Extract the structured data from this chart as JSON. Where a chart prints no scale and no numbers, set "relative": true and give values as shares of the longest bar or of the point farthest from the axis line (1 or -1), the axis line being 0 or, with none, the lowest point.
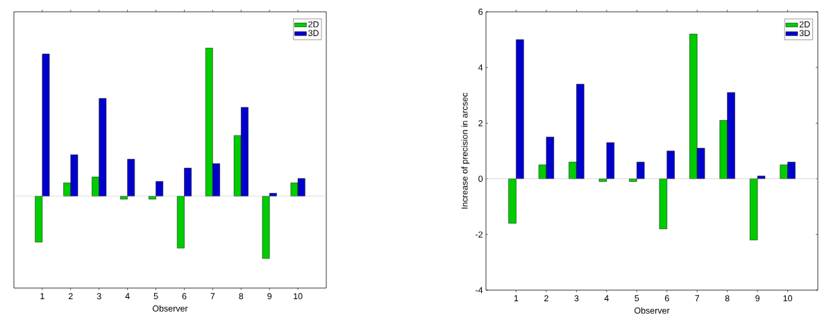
{
  "chart_data": [
    {
      "type": "bar",
      "xlabel": "Observer",
      "categories": [
        "1",
        "2",
        "3",
        "4",
        "5",
        "6",
        "7",
        "8",
        "9",
        "10"
      ],
      "relative": true,
      "legend": "top right",
      "series": [
        {
          "name": "2D",
          "color": "#00cc00",
          "values": [
            -0.31,
            0.09,
            0.13,
            -0.02,
            -0.02,
            -0.35,
            1,
            0.41,
            -0.42,
            0.09
          ]
        },
        {
          "name": "3D",
          "color": "#0000cc",
          "values": [
            0.96,
            0.28,
            0.66,
            0.25,
            0.1,
            0.19,
            0.22,
            0.6,
            0.02,
            0.12
          ]
        }
      ]
    },
    {
      "type": "bar",
      "xlabel": "Observer",
      "ylabel": "Increase of precision in arcsec",
      "categories": [
        "1",
        "2",
        "3",
        "4",
        "5",
        "6",
        "7",
        "8",
        "9",
        "10"
      ],
      "ylim": [
        -4,
        6
      ],
      "yticks": [
        -4,
        -2,
        0,
        2,
        4,
        6
      ],
      "legend": "top right",
      "series": [
        {
          "name": "2D",
          "color": "#00cc00",
          "values": [
            -1.6,
            0.5,
            0.6,
            -0.1,
            -0.1,
            -1.8,
            5.2,
            2.1,
            -2.2,
            0.5
          ]
        },
        {
          "name": "3D",
          "color": "#0000cc",
          "values": [
            5.0,
            1.5,
            3.4,
            1.3,
            0.6,
            1.0,
            1.1,
            3.1,
            0.1,
            0.6
          ]
        }
      ]
    }
  ]
}
